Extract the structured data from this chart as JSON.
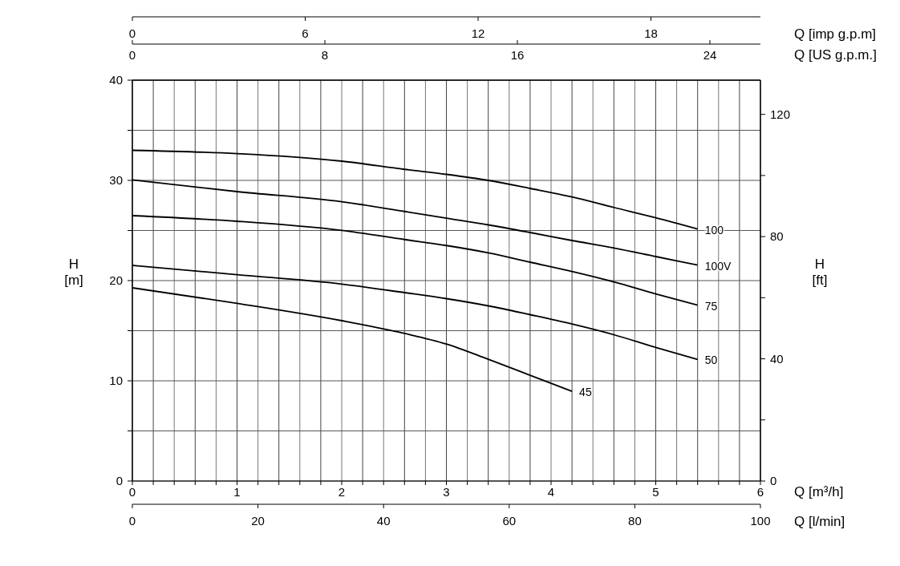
{
  "chart_data": {
    "type": "line",
    "xlabel": "Q [m³/h]",
    "x2label": "Q [US g.p.m.]",
    "ylabel": "H [m]",
    "y2label": "H [ft]",
    "xlim": [
      0,
      6
    ],
    "xticks": [
      0,
      {
        "value": 0.2,
        "label": null
      },
      {
        "value": 0.4,
        "label": null
      },
      {
        "value": 0.6,
        "label": null
      },
      {
        "value": 0.8,
        "label": null
      },
      1,
      {
        "value": 1.2,
        "label": null
      },
      {
        "value": 1.4,
        "label": null
      },
      {
        "value": 1.6,
        "label": null
      },
      {
        "value": 1.8,
        "label": null
      },
      2,
      {
        "value": 2.2,
        "label": null
      },
      {
        "value": 2.4,
        "label": null
      },
      {
        "value": 2.6,
        "label": null
      },
      {
        "value": 2.8,
        "label": null
      },
      3,
      {
        "value": 3.2,
        "label": null
      },
      {
        "value": 3.4,
        "label": null
      },
      {
        "value": 3.6,
        "label": null
      },
      {
        "value": 3.8,
        "label": null
      },
      4,
      {
        "value": 4.2,
        "label": null
      },
      {
        "value": 4.4,
        "label": null
      },
      {
        "value": 4.6,
        "label": null
      },
      {
        "value": 4.8,
        "label": null
      },
      5,
      {
        "value": 5.2,
        "label": null
      },
      {
        "value": 5.4,
        "label": null
      },
      {
        "value": 5.6,
        "label": null
      },
      {
        "value": 5.8,
        "label": null
      },
      6
    ],
    "x2lim": [
      0,
      26.1
    ],
    "x2ticks": [
      0,
      8,
      16,
      24
    ],
    "ylim": [
      0,
      40
    ],
    "yticks": [
      0,
      {
        "value": 5,
        "label": null
      },
      10,
      {
        "value": 15,
        "label": null
      },
      20,
      {
        "value": 25,
        "label": null
      },
      30,
      {
        "value": 35,
        "label": null
      },
      40
    ],
    "y2lim": [
      0,
      131.2
    ],
    "y2ticks": [
      0,
      {
        "value": 20,
        "label": null
      },
      40,
      {
        "value": 60,
        "label": null
      },
      80,
      {
        "value": 100,
        "label": null
      },
      120
    ],
    "grid": true,
    "annotations": [
      "Q [imp g.p.m]",
      "0",
      "6",
      "12",
      "18",
      "Q [l/min]",
      "0",
      "20",
      "40",
      "60",
      "80",
      "100"
    ],
    "series": [
      {
        "name": "100",
        "color": "#000000",
        "x": [
          0,
          1,
          2,
          2.6,
          3,
          3.4,
          3.8,
          4.2,
          4.6,
          5,
          5.4
        ],
        "values": [
          33.0,
          32.67,
          31.92,
          31.1,
          30.6,
          30.0,
          29.2,
          28.35,
          27.3,
          26.27,
          25.15
        ]
      },
      {
        "name": "100V",
        "color": "#000000",
        "x": [
          0,
          1,
          2,
          2.6,
          3,
          3.4,
          3.8,
          4.2,
          4.6,
          5,
          5.4
        ],
        "values": [
          30.05,
          28.88,
          27.87,
          26.9,
          26.23,
          25.56,
          24.8,
          24.0,
          23.25,
          22.4,
          21.55
        ]
      },
      {
        "name": "75",
        "color": "#000000",
        "x": [
          0,
          1,
          2,
          2.6,
          3,
          3.4,
          3.8,
          4.2,
          4.6,
          5,
          5.4
        ],
        "values": [
          26.48,
          25.92,
          25.01,
          24.1,
          23.5,
          22.77,
          21.84,
          20.91,
          19.87,
          18.67,
          17.55
        ]
      },
      {
        "name": "50",
        "color": "#000000",
        "x": [
          0,
          1,
          2,
          2.6,
          3,
          3.4,
          3.8,
          4.2,
          4.6,
          5,
          5.4
        ],
        "values": [
          21.52,
          20.59,
          19.65,
          18.8,
          18.2,
          17.48,
          16.6,
          15.67,
          14.6,
          13.33,
          12.13
        ]
      },
      {
        "name": "45",
        "color": "#000000",
        "x": [
          0,
          1,
          2,
          2.6,
          3,
          3.4,
          3.8,
          4.2
        ],
        "values": [
          19.28,
          17.73,
          16.0,
          14.73,
          13.67,
          12.15,
          10.55,
          8.95
        ]
      }
    ]
  }
}
